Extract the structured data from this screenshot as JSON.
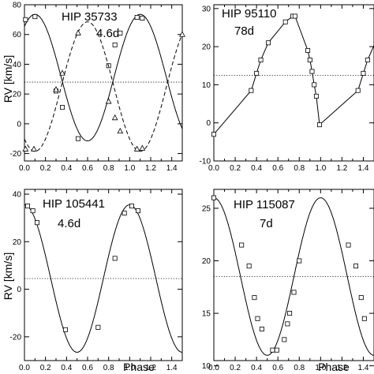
{
  "chart_data": [
    {
      "type": "scatter",
      "title": "HIP 35733",
      "period_label": "4.6d",
      "ylabel": "RV [km/s]",
      "xlabel": "",
      "xlim": [
        0,
        1.5
      ],
      "ylim": [
        -25,
        80
      ],
      "xticks": [
        "0.0",
        "0.2",
        "0.4",
        "0.6",
        "0.8",
        "1.0",
        "1.2",
        "1.4"
      ],
      "yticks": [
        "-20",
        "0",
        "20",
        "40",
        "60",
        "80"
      ],
      "gamma": 28,
      "series": [
        {
          "marker": "square",
          "line": "solid",
          "curve": {
            "offset": 31,
            "amplitude": 42.5,
            "peak_phase": 0.1
          },
          "points": [
            [
              0.01,
              70
            ],
            [
              0.1,
              72
            ],
            [
              0.3,
              22
            ],
            [
              0.36,
              11
            ],
            [
              0.51,
              -10
            ],
            [
              0.8,
              39
            ],
            [
              0.86,
              53
            ],
            [
              0.91,
              61
            ],
            [
              1.07,
              71.5
            ],
            [
              1.12,
              71
            ]
          ]
        },
        {
          "marker": "triangle",
          "line": "dashed",
          "curve": {
            "offset": 25,
            "amplitude": 43.5,
            "peak_phase": 0.6
          },
          "points": [
            [
              0.01,
              -17
            ],
            [
              0.09,
              -17
            ],
            [
              0.3,
              23
            ],
            [
              0.36,
              34
            ],
            [
              0.51,
              61
            ],
            [
              0.8,
              15
            ],
            [
              0.86,
              4
            ],
            [
              0.91,
              -5
            ],
            [
              1.07,
              -17
            ],
            [
              1.12,
              -16.5
            ],
            [
              1.5,
              60
            ]
          ]
        }
      ]
    },
    {
      "type": "scatter",
      "title": "HIP 95110",
      "period_label": "78d",
      "ylabel": "",
      "xlabel": "",
      "xlim": [
        0,
        1.5
      ],
      "ylim": [
        -10,
        31
      ],
      "xticks": [
        "0.0",
        "0.2",
        "0.4",
        "0.6",
        "0.8",
        "1.0",
        "1.2",
        "1.4"
      ],
      "yticks": [
        "-10",
        "0",
        "10",
        "20",
        "30"
      ],
      "gamma": 12.5,
      "series": [
        {
          "marker": "square",
          "line": "solid",
          "points": [
            [
              0.0,
              -3
            ],
            [
              0.35,
              8.5
            ],
            [
              0.4,
              13
            ],
            [
              0.44,
              16.5
            ],
            [
              0.51,
              21
            ],
            [
              0.67,
              26.5
            ],
            [
              0.74,
              28
            ],
            [
              0.76,
              28
            ],
            [
              0.88,
              19
            ],
            [
              0.9,
              16.5
            ],
            [
              0.92,
              13.5
            ],
            [
              0.94,
              10
            ],
            [
              0.96,
              7
            ],
            [
              0.99,
              -0.5
            ],
            [
              1.35,
              8.5
            ],
            [
              1.4,
              13
            ],
            [
              1.44,
              16.5
            ],
            [
              1.51,
              21
            ]
          ]
        }
      ]
    },
    {
      "type": "scatter",
      "title": "HIP 105441",
      "period_label": "4.6d",
      "ylabel": "RV [km/s]",
      "xlabel": "Phase",
      "xlim": [
        0,
        1.5
      ],
      "ylim": [
        -30,
        42
      ],
      "xticks": [
        "0.0",
        "0.2",
        "0.4",
        "0.6",
        "0.8",
        "1.0",
        "1.2",
        "1.4"
      ],
      "yticks": [
        "-20",
        "0",
        "20",
        "40"
      ],
      "gamma": 4.5,
      "series": [
        {
          "marker": "square",
          "line": "solid",
          "curve": {
            "offset": 4.5,
            "amplitude": 31,
            "peak_phase": 0.0
          },
          "points": [
            [
              0.03,
              35
            ],
            [
              0.08,
              33
            ],
            [
              0.12,
              28
            ],
            [
              0.39,
              -17
            ],
            [
              0.7,
              -16
            ],
            [
              0.86,
              13
            ],
            [
              0.95,
              32
            ],
            [
              1.02,
              35
            ],
            [
              1.08,
              33
            ]
          ]
        }
      ]
    },
    {
      "type": "scatter",
      "title": "HIP 115087",
      "period_label": "7d",
      "ylabel": "",
      "xlabel": "Phase",
      "xlim": [
        0,
        1.5
      ],
      "ylim": [
        10.5,
        26.8
      ],
      "xticks": [
        "0.0",
        "0.2",
        "0.4",
        "0.6",
        "0.8",
        "1.0",
        "1.2",
        "1.4"
      ],
      "yticks": [
        "10",
        "15",
        "20",
        "25"
      ],
      "gamma": 18.5,
      "series": [
        {
          "marker": "square",
          "line": "solid",
          "curve": {
            "offset": 18.5,
            "amplitude": 7.5,
            "peak_phase": 0.0
          },
          "points": [
            [
              0.0,
              26
            ],
            [
              0.26,
              21.5
            ],
            [
              0.33,
              19.5
            ],
            [
              0.38,
              16.5
            ],
            [
              0.41,
              14.5
            ],
            [
              0.45,
              13.5
            ],
            [
              0.55,
              11.5
            ],
            [
              0.59,
              11.5
            ],
            [
              0.66,
              12.5
            ],
            [
              0.69,
              14
            ],
            [
              0.71,
              15
            ],
            [
              0.75,
              17
            ],
            [
              0.8,
              20
            ],
            [
              1.26,
              21.5
            ],
            [
              1.33,
              19.5
            ],
            [
              1.38,
              16.5
            ],
            [
              1.41,
              14.5
            ]
          ]
        }
      ]
    }
  ]
}
